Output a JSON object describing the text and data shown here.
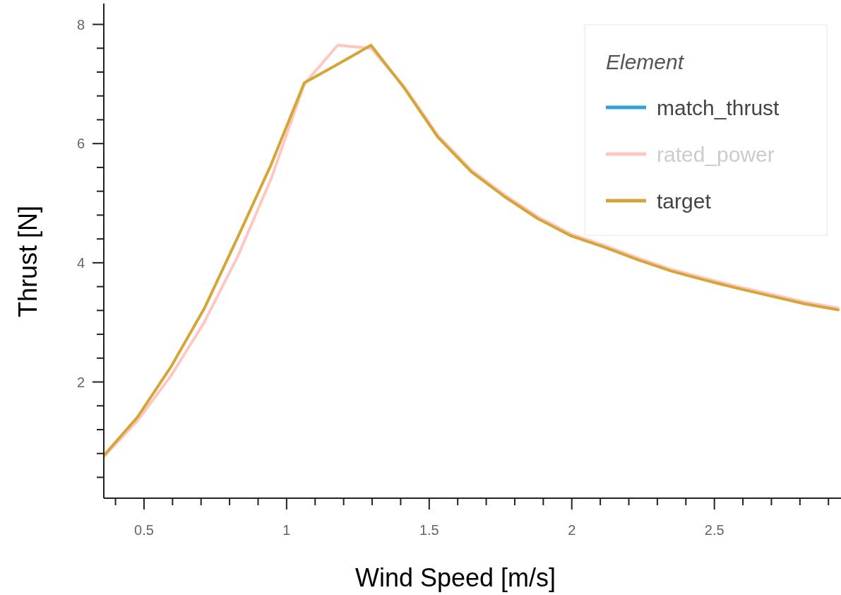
{
  "chart_data": {
    "type": "line",
    "xlabel": "Wind Speed [m/s]",
    "ylabel": "Thrust [N]",
    "legend_title": "Element",
    "legend": "top right",
    "grid": false,
    "x": [
      0.36,
      0.477,
      0.594,
      0.711,
      0.828,
      0.945,
      1.062,
      1.179,
      1.296,
      1.413,
      1.53,
      1.647,
      1.764,
      1.881,
      1.998,
      2.115,
      2.232,
      2.349,
      2.466,
      2.583,
      2.7,
      2.817,
      2.934
    ],
    "xlim": [
      0.359,
      2.944
    ],
    "ylim": [
      0.05,
      8.35
    ],
    "xticks": [
      {
        "value": 0.4,
        "label": null
      },
      {
        "value": 0.5,
        "label": "0.5"
      },
      {
        "value": 0.6,
        "label": null
      },
      {
        "value": 0.7,
        "label": null
      },
      {
        "value": 0.8,
        "label": null
      },
      {
        "value": 0.9,
        "label": null
      },
      {
        "value": 1,
        "label": "1"
      },
      {
        "value": 1.1,
        "label": null
      },
      {
        "value": 1.2,
        "label": null
      },
      {
        "value": 1.3,
        "label": null
      },
      {
        "value": 1.4,
        "label": null
      },
      {
        "value": 1.5,
        "label": "1.5"
      },
      {
        "value": 1.6,
        "label": null
      },
      {
        "value": 1.7,
        "label": null
      },
      {
        "value": 1.8,
        "label": null
      },
      {
        "value": 1.9,
        "label": null
      },
      {
        "value": 2,
        "label": "2"
      },
      {
        "value": 2.1,
        "label": null
      },
      {
        "value": 2.2,
        "label": null
      },
      {
        "value": 2.3,
        "label": null
      },
      {
        "value": 2.4,
        "label": null
      },
      {
        "value": 2.5,
        "label": "2.5"
      },
      {
        "value": 2.6,
        "label": null
      },
      {
        "value": 2.7,
        "label": null
      },
      {
        "value": 2.8,
        "label": null
      },
      {
        "value": 2.9,
        "label": null
      }
    ],
    "yticks": [
      {
        "value": 0.4,
        "label": null
      },
      {
        "value": 0.8,
        "label": null
      },
      {
        "value": 1.2,
        "label": null
      },
      {
        "value": 1.6,
        "label": null
      },
      2,
      {
        "value": 2.4,
        "label": null
      },
      {
        "value": 2.8,
        "label": null
      },
      {
        "value": 3.2,
        "label": null
      },
      {
        "value": 3.6,
        "label": null
      },
      4,
      {
        "value": 4.4,
        "label": null
      },
      {
        "value": 4.8,
        "label": null
      },
      {
        "value": 5.2,
        "label": null
      },
      {
        "value": 5.6,
        "label": null
      },
      6,
      {
        "value": 6.4,
        "label": null
      },
      {
        "value": 6.8,
        "label": null
      },
      {
        "value": 7.2,
        "label": null
      },
      {
        "value": 7.6,
        "label": null
      },
      8
    ],
    "series": [
      {
        "name": "match_thrust",
        "color": "#30a2da",
        "values": [
          null,
          null,
          null,
          null,
          null,
          null,
          null,
          null,
          null,
          null,
          null,
          null,
          null,
          null,
          null,
          null,
          null,
          null,
          null,
          null,
          null,
          null,
          null
        ]
      },
      {
        "name": "rated_power",
        "color": "#ffc7c0",
        "values": [
          0.75,
          1.35,
          2.1,
          3.0,
          4.1,
          5.4,
          7.0,
          7.65,
          7.6,
          6.95,
          6.14,
          5.56,
          5.14,
          4.77,
          4.48,
          4.29,
          4.08,
          3.89,
          3.74,
          3.6,
          3.47,
          3.34,
          3.24
        ]
      },
      {
        "name": "target",
        "color": "#d4a63a",
        "values": [
          0.77,
          1.41,
          2.25,
          3.23,
          4.42,
          5.64,
          7.02,
          7.33,
          7.65,
          6.93,
          6.11,
          5.53,
          5.11,
          4.74,
          4.45,
          4.26,
          4.05,
          3.86,
          3.71,
          3.57,
          3.44,
          3.31,
          3.21
        ]
      }
    ]
  }
}
